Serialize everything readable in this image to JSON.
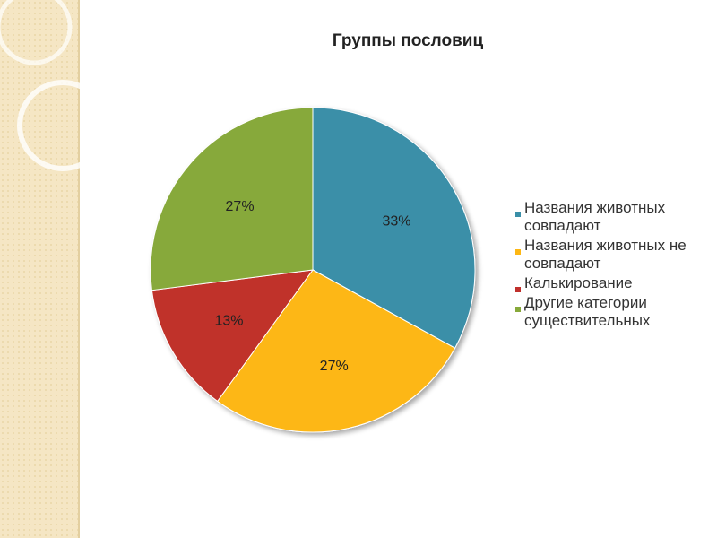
{
  "chart_data": {
    "type": "pie",
    "title": "Группы пословиц",
    "categories": [
      "Названия животных совпадают",
      "Названия животных не совпадают",
      "Калькирование",
      "Другие категории существительных"
    ],
    "values": [
      33,
      27,
      13,
      27
    ],
    "value_labels": [
      "33%",
      "27%",
      "13%",
      "27%"
    ],
    "colors": [
      "#3a8fa8",
      "#fdb714",
      "#c0302c",
      "#87a93a"
    ],
    "legend": "right"
  }
}
